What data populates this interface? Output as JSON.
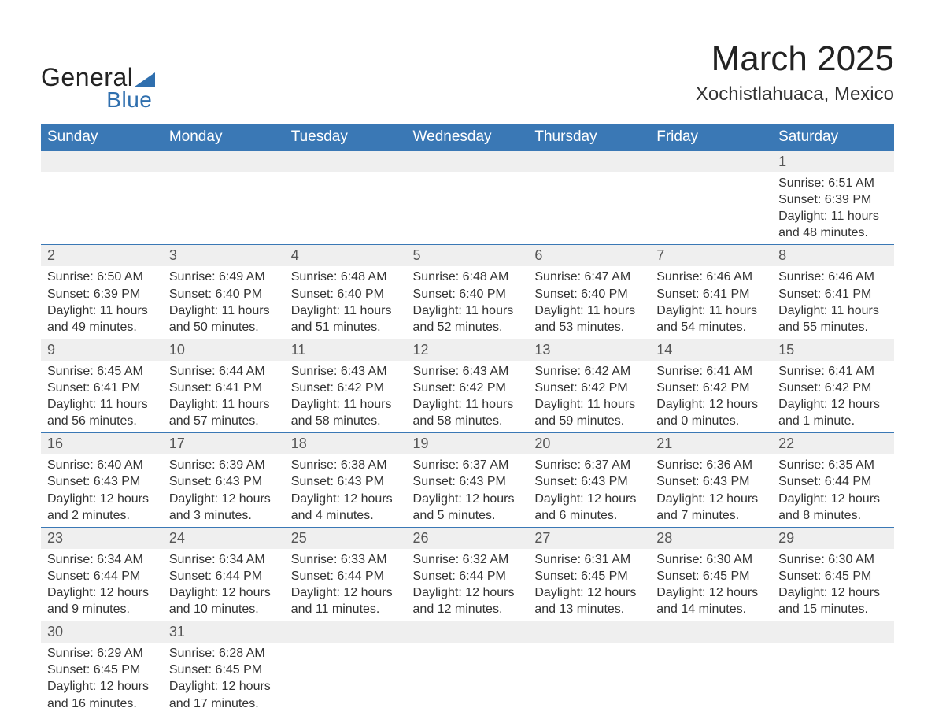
{
  "logo": {
    "text1": "General",
    "text2": "Blue"
  },
  "title": "March 2025",
  "location": "Xochistlahuaca, Mexico",
  "colors": {
    "header_bg": "#3a78b5",
    "header_text": "#ffffff",
    "daynum_bg": "#efefef",
    "row_border": "#3a78b5",
    "body_text": "#333333",
    "logo_blue": "#2f6fae"
  },
  "typography": {
    "title_fontsize": 44,
    "location_fontsize": 24,
    "header_fontsize": 19,
    "daynum_fontsize": 18,
    "detail_fontsize": 16
  },
  "day_headers": [
    "Sunday",
    "Monday",
    "Tuesday",
    "Wednesday",
    "Thursday",
    "Friday",
    "Saturday"
  ],
  "weeks": [
    [
      null,
      null,
      null,
      null,
      null,
      null,
      {
        "n": "1",
        "sr": "Sunrise: 6:51 AM",
        "ss": "Sunset: 6:39 PM",
        "d1": "Daylight: 11 hours",
        "d2": "and 48 minutes."
      }
    ],
    [
      {
        "n": "2",
        "sr": "Sunrise: 6:50 AM",
        "ss": "Sunset: 6:39 PM",
        "d1": "Daylight: 11 hours",
        "d2": "and 49 minutes."
      },
      {
        "n": "3",
        "sr": "Sunrise: 6:49 AM",
        "ss": "Sunset: 6:40 PM",
        "d1": "Daylight: 11 hours",
        "d2": "and 50 minutes."
      },
      {
        "n": "4",
        "sr": "Sunrise: 6:48 AM",
        "ss": "Sunset: 6:40 PM",
        "d1": "Daylight: 11 hours",
        "d2": "and 51 minutes."
      },
      {
        "n": "5",
        "sr": "Sunrise: 6:48 AM",
        "ss": "Sunset: 6:40 PM",
        "d1": "Daylight: 11 hours",
        "d2": "and 52 minutes."
      },
      {
        "n": "6",
        "sr": "Sunrise: 6:47 AM",
        "ss": "Sunset: 6:40 PM",
        "d1": "Daylight: 11 hours",
        "d2": "and 53 minutes."
      },
      {
        "n": "7",
        "sr": "Sunrise: 6:46 AM",
        "ss": "Sunset: 6:41 PM",
        "d1": "Daylight: 11 hours",
        "d2": "and 54 minutes."
      },
      {
        "n": "8",
        "sr": "Sunrise: 6:46 AM",
        "ss": "Sunset: 6:41 PM",
        "d1": "Daylight: 11 hours",
        "d2": "and 55 minutes."
      }
    ],
    [
      {
        "n": "9",
        "sr": "Sunrise: 6:45 AM",
        "ss": "Sunset: 6:41 PM",
        "d1": "Daylight: 11 hours",
        "d2": "and 56 minutes."
      },
      {
        "n": "10",
        "sr": "Sunrise: 6:44 AM",
        "ss": "Sunset: 6:41 PM",
        "d1": "Daylight: 11 hours",
        "d2": "and 57 minutes."
      },
      {
        "n": "11",
        "sr": "Sunrise: 6:43 AM",
        "ss": "Sunset: 6:42 PM",
        "d1": "Daylight: 11 hours",
        "d2": "and 58 minutes."
      },
      {
        "n": "12",
        "sr": "Sunrise: 6:43 AM",
        "ss": "Sunset: 6:42 PM",
        "d1": "Daylight: 11 hours",
        "d2": "and 58 minutes."
      },
      {
        "n": "13",
        "sr": "Sunrise: 6:42 AM",
        "ss": "Sunset: 6:42 PM",
        "d1": "Daylight: 11 hours",
        "d2": "and 59 minutes."
      },
      {
        "n": "14",
        "sr": "Sunrise: 6:41 AM",
        "ss": "Sunset: 6:42 PM",
        "d1": "Daylight: 12 hours",
        "d2": "and 0 minutes."
      },
      {
        "n": "15",
        "sr": "Sunrise: 6:41 AM",
        "ss": "Sunset: 6:42 PM",
        "d1": "Daylight: 12 hours",
        "d2": "and 1 minute."
      }
    ],
    [
      {
        "n": "16",
        "sr": "Sunrise: 6:40 AM",
        "ss": "Sunset: 6:43 PM",
        "d1": "Daylight: 12 hours",
        "d2": "and 2 minutes."
      },
      {
        "n": "17",
        "sr": "Sunrise: 6:39 AM",
        "ss": "Sunset: 6:43 PM",
        "d1": "Daylight: 12 hours",
        "d2": "and 3 minutes."
      },
      {
        "n": "18",
        "sr": "Sunrise: 6:38 AM",
        "ss": "Sunset: 6:43 PM",
        "d1": "Daylight: 12 hours",
        "d2": "and 4 minutes."
      },
      {
        "n": "19",
        "sr": "Sunrise: 6:37 AM",
        "ss": "Sunset: 6:43 PM",
        "d1": "Daylight: 12 hours",
        "d2": "and 5 minutes."
      },
      {
        "n": "20",
        "sr": "Sunrise: 6:37 AM",
        "ss": "Sunset: 6:43 PM",
        "d1": "Daylight: 12 hours",
        "d2": "and 6 minutes."
      },
      {
        "n": "21",
        "sr": "Sunrise: 6:36 AM",
        "ss": "Sunset: 6:43 PM",
        "d1": "Daylight: 12 hours",
        "d2": "and 7 minutes."
      },
      {
        "n": "22",
        "sr": "Sunrise: 6:35 AM",
        "ss": "Sunset: 6:44 PM",
        "d1": "Daylight: 12 hours",
        "d2": "and 8 minutes."
      }
    ],
    [
      {
        "n": "23",
        "sr": "Sunrise: 6:34 AM",
        "ss": "Sunset: 6:44 PM",
        "d1": "Daylight: 12 hours",
        "d2": "and 9 minutes."
      },
      {
        "n": "24",
        "sr": "Sunrise: 6:34 AM",
        "ss": "Sunset: 6:44 PM",
        "d1": "Daylight: 12 hours",
        "d2": "and 10 minutes."
      },
      {
        "n": "25",
        "sr": "Sunrise: 6:33 AM",
        "ss": "Sunset: 6:44 PM",
        "d1": "Daylight: 12 hours",
        "d2": "and 11 minutes."
      },
      {
        "n": "26",
        "sr": "Sunrise: 6:32 AM",
        "ss": "Sunset: 6:44 PM",
        "d1": "Daylight: 12 hours",
        "d2": "and 12 minutes."
      },
      {
        "n": "27",
        "sr": "Sunrise: 6:31 AM",
        "ss": "Sunset: 6:45 PM",
        "d1": "Daylight: 12 hours",
        "d2": "and 13 minutes."
      },
      {
        "n": "28",
        "sr": "Sunrise: 6:30 AM",
        "ss": "Sunset: 6:45 PM",
        "d1": "Daylight: 12 hours",
        "d2": "and 14 minutes."
      },
      {
        "n": "29",
        "sr": "Sunrise: 6:30 AM",
        "ss": "Sunset: 6:45 PM",
        "d1": "Daylight: 12 hours",
        "d2": "and 15 minutes."
      }
    ],
    [
      {
        "n": "30",
        "sr": "Sunrise: 6:29 AM",
        "ss": "Sunset: 6:45 PM",
        "d1": "Daylight: 12 hours",
        "d2": "and 16 minutes."
      },
      {
        "n": "31",
        "sr": "Sunrise: 6:28 AM",
        "ss": "Sunset: 6:45 PM",
        "d1": "Daylight: 12 hours",
        "d2": "and 17 minutes."
      },
      null,
      null,
      null,
      null,
      null
    ]
  ]
}
